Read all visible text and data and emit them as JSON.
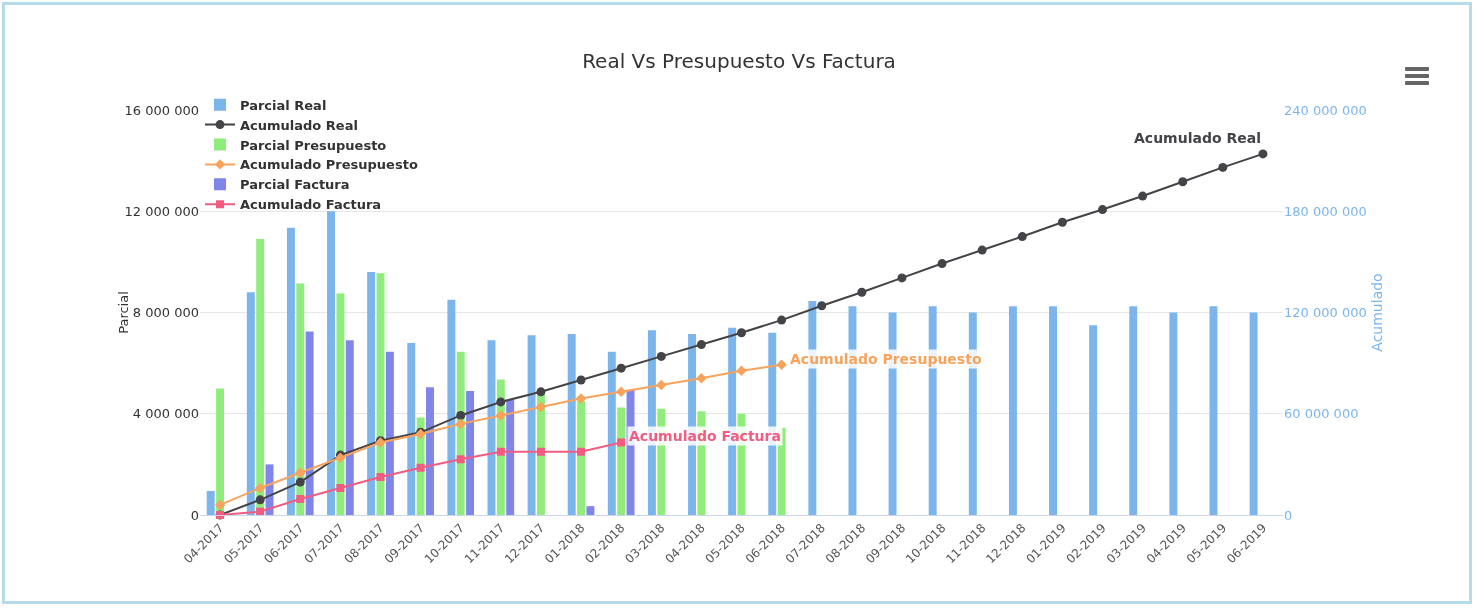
{
  "chart_data": {
    "type": "bar",
    "title": "Real Vs Presupuesto Vs Factura",
    "ylabel": "Parcial",
    "y2label": "Acumulado",
    "categories": [
      "04-2017",
      "05-2017",
      "06-2017",
      "07-2017",
      "08-2017",
      "09-2017",
      "10-2017",
      "11-2017",
      "12-2017",
      "01-2018",
      "02-2018",
      "03-2018",
      "04-2018",
      "05-2018",
      "06-2018",
      "07-2018",
      "08-2018",
      "09-2018",
      "10-2018",
      "11-2018",
      "12-2018",
      "01-2019",
      "02-2019",
      "03-2019",
      "04-2019",
      "05-2019",
      "06-2019"
    ],
    "series": [
      {
        "name": "Parcial Real",
        "color": "#7cb5ec",
        "values": [
          950000,
          8800000,
          11350000,
          12000000,
          9600000,
          6800000,
          8500000,
          6900000,
          7100000,
          7150000,
          6450000,
          7300000,
          7150000,
          7400000,
          7200000,
          8450000,
          8250000,
          8000000,
          8250000,
          8000000,
          8250000,
          8250000,
          7500000,
          8250000,
          8000000,
          8250000,
          8000000
        ]
      },
      {
        "name": "Acumulado Real",
        "type": "line",
        "axis": "y2",
        "marker": "circle",
        "color": "#434348",
        "values": [
          0,
          9000000,
          19500000,
          35500000,
          44000000,
          49000000,
          59000000,
          67000000,
          73000000,
          80000000,
          87000000,
          94000000,
          101000000,
          108000000,
          115500000,
          124000000,
          132000000,
          140500000,
          149000000,
          157000000,
          165000000,
          173500000,
          181000000,
          189000000,
          197500000,
          206000000,
          214000000
        ]
      },
      {
        "name": "Parcial Presupuesto",
        "color": "#90ed7d",
        "values": [
          5000000,
          10900000,
          9150000,
          8750000,
          9550000,
          3850000,
          6450000,
          5350000,
          4800000,
          4500000,
          4250000,
          4200000,
          4100000,
          4000000,
          3450000,
          null,
          null,
          null,
          null,
          null,
          null,
          null,
          null,
          null,
          null,
          null,
          null
        ]
      },
      {
        "name": "Acumulado Presupuesto",
        "type": "line",
        "axis": "y2",
        "marker": "diamond",
        "color": "#f7a35c",
        "values": [
          6000000,
          16000000,
          25000000,
          34000000,
          43000000,
          48000000,
          54000000,
          59000000,
          64000000,
          69000000,
          73000000,
          77000000,
          81000000,
          85500000,
          89000000,
          null,
          null,
          null,
          null,
          null,
          null,
          null,
          null,
          null,
          null,
          null,
          null
        ]
      },
      {
        "name": "Parcial Factura",
        "color": "#8085e9",
        "values": [
          null,
          2000000,
          7250000,
          6900000,
          6450000,
          5050000,
          4900000,
          4550000,
          null,
          350000,
          4950000,
          null,
          null,
          null,
          null,
          null,
          null,
          null,
          null,
          null,
          null,
          null,
          null,
          null,
          null,
          null,
          null
        ]
      },
      {
        "name": "Acumulado Factura",
        "type": "line",
        "axis": "y2",
        "marker": "square",
        "color": "#f15c80",
        "values": [
          0,
          2000000,
          9500000,
          16000000,
          22500000,
          28000000,
          33000000,
          37500000,
          37500000,
          37500000,
          43000000,
          null,
          null,
          null,
          null,
          null,
          null,
          null,
          null,
          null,
          null,
          null,
          null,
          null,
          null,
          null,
          null
        ]
      }
    ],
    "ylim": [
      0,
      16000000
    ],
    "yticks": [
      0,
      {
        "value": 4000000,
        "label": "4 000 000"
      },
      {
        "value": 8000000,
        "label": "8 000 000"
      },
      {
        "value": 12000000,
        "label": "12 000 000"
      },
      {
        "value": 16000000,
        "label": "16 000 000"
      }
    ],
    "y2lim": [
      0,
      240000000
    ],
    "y2ticks": [
      0,
      {
        "value": 60000000,
        "label": "60 000 000"
      },
      {
        "value": 120000000,
        "label": "120 000 000"
      },
      {
        "value": 180000000,
        "label": "180 000 000"
      },
      {
        "value": 240000000,
        "label": "240 000 000"
      }
    ],
    "grid": "y",
    "legend": "top left"
  }
}
